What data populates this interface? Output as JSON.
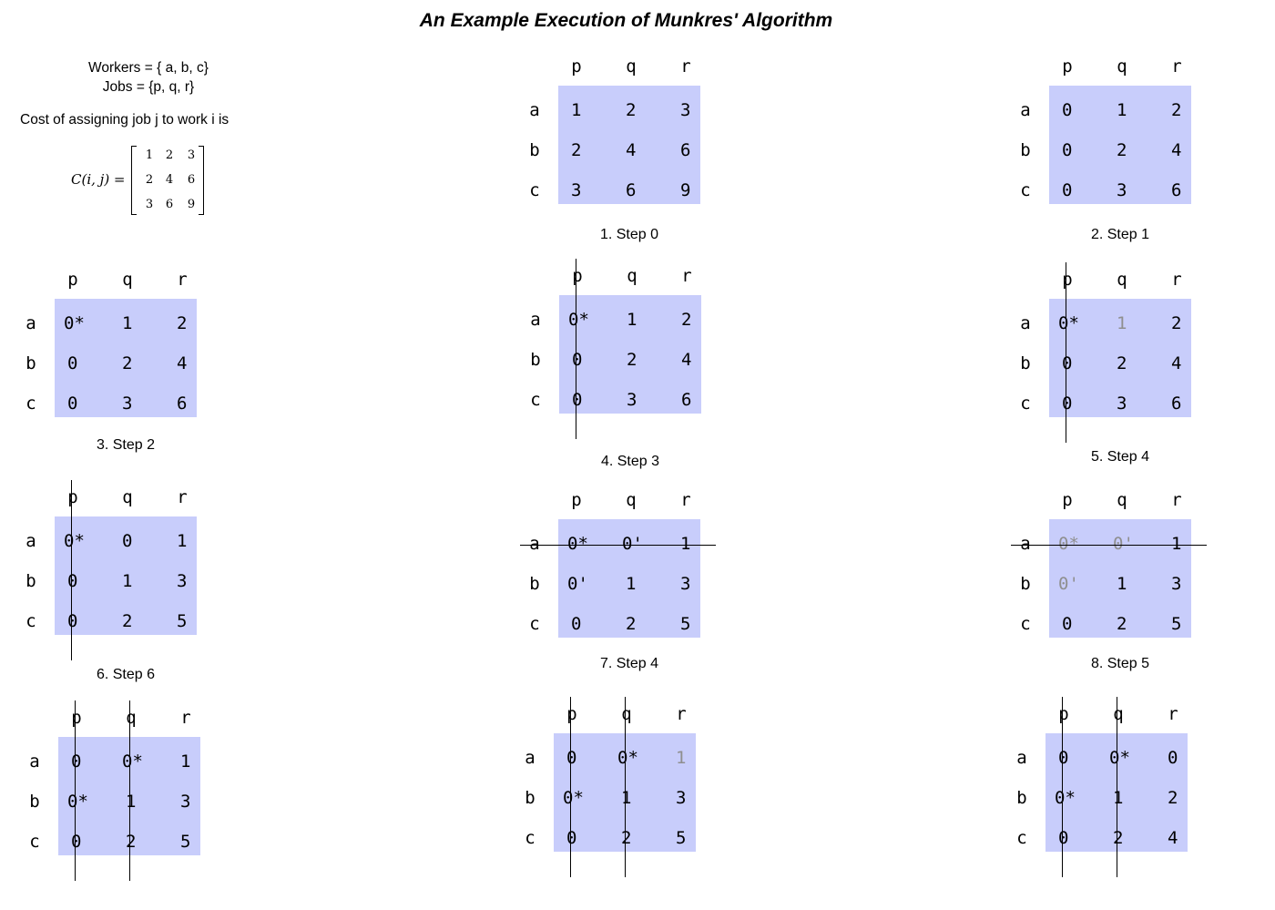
{
  "title": "An Example Execution of Munkres' Algorithm",
  "intro": {
    "workers": "Workers = { a, b, c}",
    "jobs": "Jobs = {p, q, r}",
    "cost_text": "Cost of assigning job j to work i is",
    "formula_lhs": "C(i, j) =",
    "matrix": [
      [
        "1",
        "2",
        "3"
      ],
      [
        "2",
        "4",
        "6"
      ],
      [
        "3",
        "6",
        "9"
      ]
    ]
  },
  "col_headers": [
    "p",
    "q",
    "r"
  ],
  "row_headers": [
    "a",
    "b",
    "c"
  ],
  "colors": {
    "matrix_bg": "#c8cdfb",
    "dimmed_text": "#8f8f8f"
  },
  "panels": [
    {
      "caption": "1. Step 0",
      "cells": [
        [
          "1",
          "2",
          "3"
        ],
        [
          "2",
          "4",
          "6"
        ],
        [
          "3",
          "6",
          "9"
        ]
      ],
      "covered_cols": [],
      "covered_rows": [],
      "dimmed": []
    },
    {
      "caption": "2. Step 1",
      "cells": [
        [
          "0",
          "1",
          "2"
        ],
        [
          "0",
          "2",
          "4"
        ],
        [
          "0",
          "3",
          "6"
        ]
      ],
      "covered_cols": [],
      "covered_rows": [],
      "dimmed": []
    },
    {
      "caption": "3. Step 2",
      "cells": [
        [
          "0*",
          "1",
          "2"
        ],
        [
          "0",
          "2",
          "4"
        ],
        [
          "0",
          "3",
          "6"
        ]
      ],
      "covered_cols": [],
      "covered_rows": [],
      "dimmed": []
    },
    {
      "caption": "4. Step 3",
      "cells": [
        [
          "0*",
          "1",
          "2"
        ],
        [
          "0",
          "2",
          "4"
        ],
        [
          "0",
          "3",
          "6"
        ]
      ],
      "covered_cols": [
        0
      ],
      "covered_rows": [],
      "dimmed": []
    },
    {
      "caption": "5. Step 4",
      "cells": [
        [
          "0*",
          "1",
          "2"
        ],
        [
          "0",
          "2",
          "4"
        ],
        [
          "0",
          "3",
          "6"
        ]
      ],
      "covered_cols": [
        0
      ],
      "covered_rows": [],
      "dimmed": [
        [
          0,
          1
        ]
      ]
    },
    {
      "caption": "6. Step 6",
      "cells": [
        [
          "0*",
          "0",
          "1"
        ],
        [
          "0",
          "1",
          "3"
        ],
        [
          "0",
          "2",
          "5"
        ]
      ],
      "covered_cols": [
        0
      ],
      "covered_rows": [],
      "dimmed": []
    },
    {
      "caption": "7. Step 4",
      "cells": [
        [
          "0*",
          "0'",
          "1"
        ],
        [
          "0'",
          "1",
          "3"
        ],
        [
          "0",
          "2",
          "5"
        ]
      ],
      "covered_cols": [],
      "covered_rows": [
        0
      ],
      "dimmed": []
    },
    {
      "caption": "8. Step 5",
      "cells": [
        [
          "0*",
          "0'",
          "1"
        ],
        [
          "0'",
          "1",
          "3"
        ],
        [
          "0",
          "2",
          "5"
        ]
      ],
      "covered_cols": [],
      "covered_rows": [
        0
      ],
      "dimmed": [
        [
          0,
          0
        ],
        [
          0,
          1
        ],
        [
          1,
          0
        ]
      ]
    },
    {
      "caption": "",
      "cells": [
        [
          "0",
          "0*",
          "1"
        ],
        [
          "0*",
          "1",
          "3"
        ],
        [
          "0",
          "2",
          "5"
        ]
      ],
      "covered_cols": [
        0,
        1
      ],
      "covered_rows": [],
      "dimmed": []
    },
    {
      "caption": "",
      "cells": [
        [
          "0",
          "0*",
          "1"
        ],
        [
          "0*",
          "1",
          "3"
        ],
        [
          "0",
          "2",
          "5"
        ]
      ],
      "covered_cols": [
        0,
        1
      ],
      "covered_rows": [],
      "dimmed": [
        [
          0,
          2
        ]
      ]
    },
    {
      "caption": "",
      "cells": [
        [
          "0",
          "0*",
          "0"
        ],
        [
          "0*",
          "1",
          "2"
        ],
        [
          "0",
          "2",
          "4"
        ]
      ],
      "covered_cols": [
        0,
        1
      ],
      "covered_rows": [],
      "dimmed": []
    }
  ]
}
